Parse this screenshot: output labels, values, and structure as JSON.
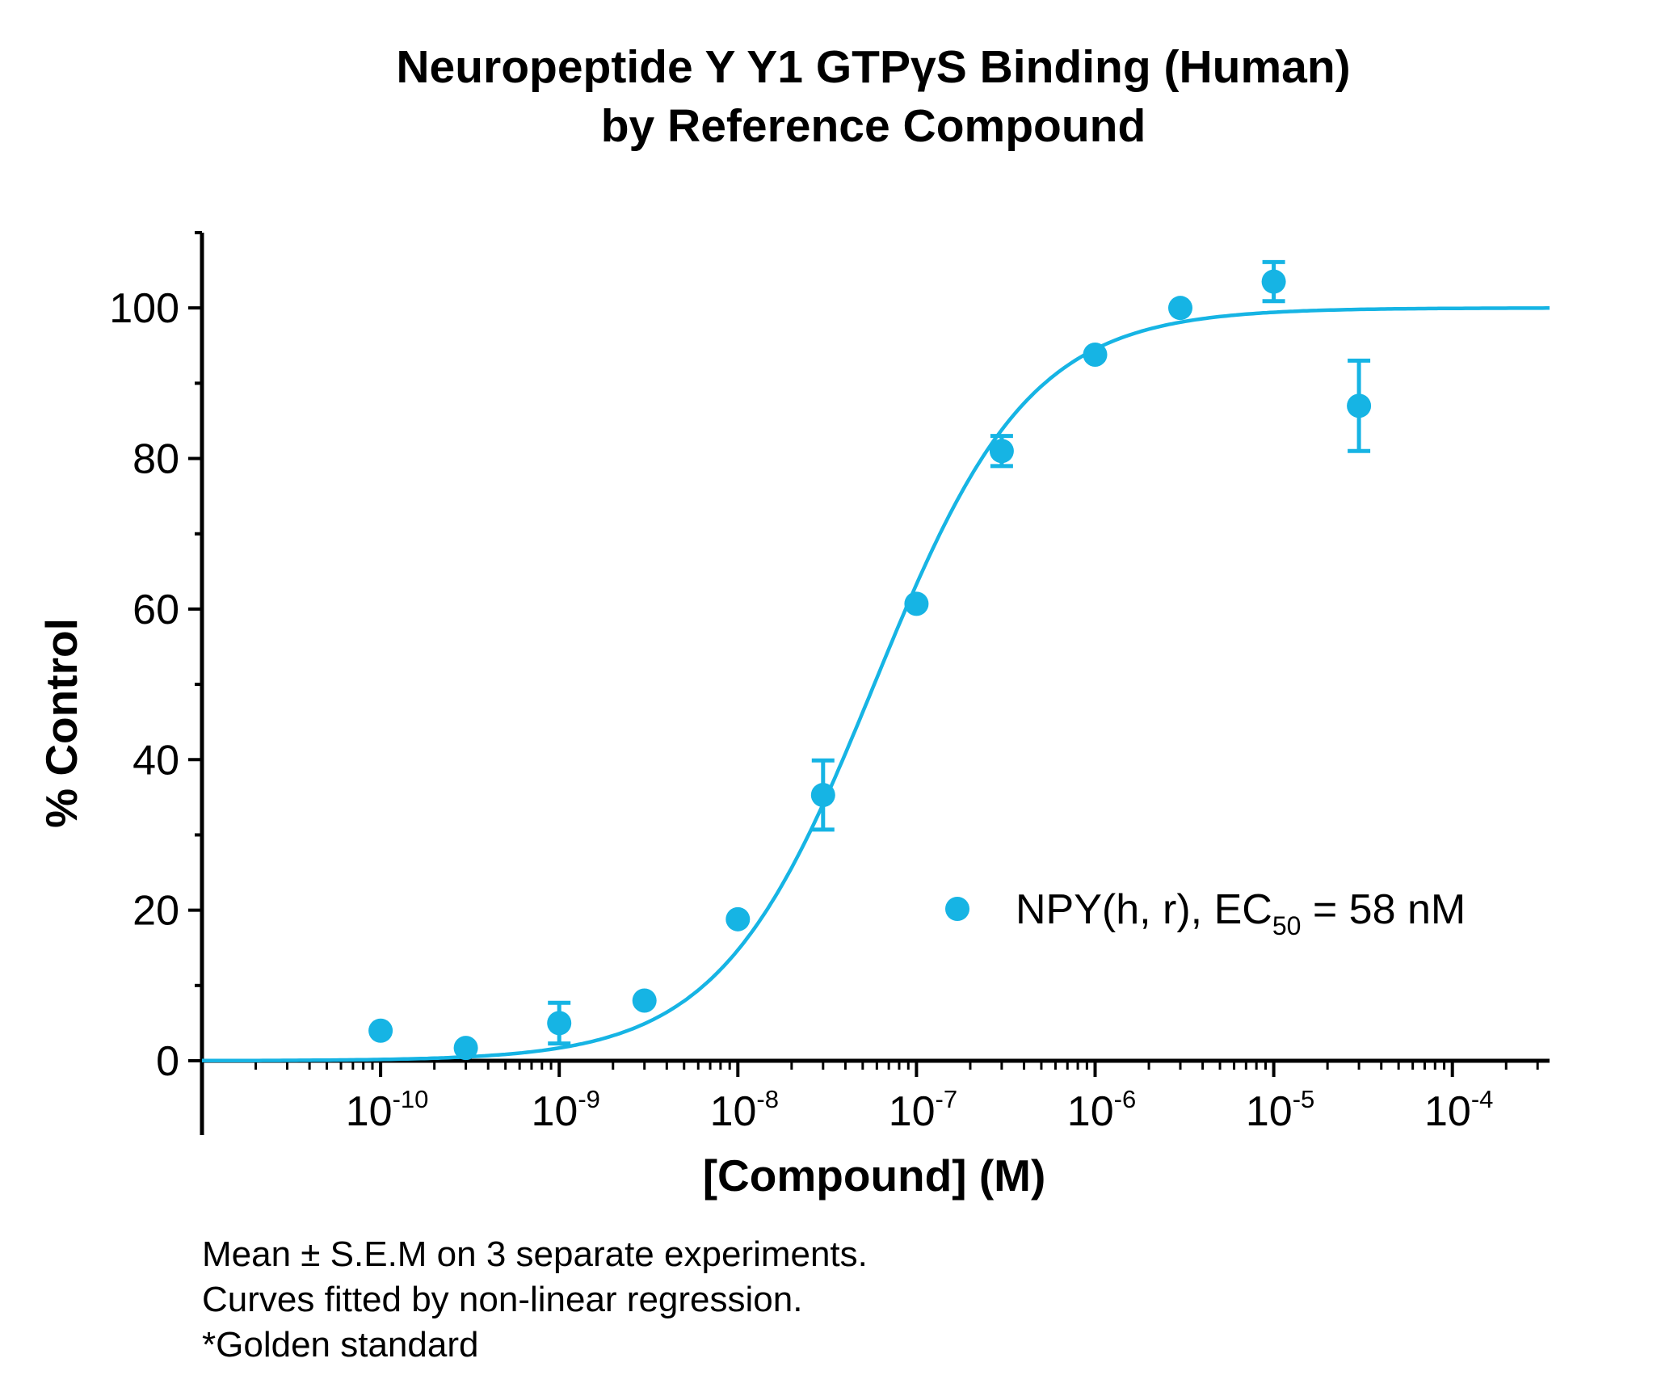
{
  "chart_data": {
    "type": "scatter",
    "title_lines": [
      "Neuropeptide Y Y1 GTPγS Binding (Human)",
      "by Reference Compound"
    ],
    "xlabel": "[Compound] (M)",
    "ylabel": "% Control",
    "x_scale": "log",
    "x_range": [
      1e-11,
      0.00035
    ],
    "x_ticks": [
      {
        "value": 1e-10,
        "base": "10",
        "exponent": "-10"
      },
      {
        "value": 1e-09,
        "base": "10",
        "exponent": "-9"
      },
      {
        "value": 1e-08,
        "base": "10",
        "exponent": "-8"
      },
      {
        "value": 1e-07,
        "base": "10",
        "exponent": "-7"
      },
      {
        "value": 1e-06,
        "base": "10",
        "exponent": "-6"
      },
      {
        "value": 1e-05,
        "base": "10",
        "exponent": "-5"
      },
      {
        "value": 0.0001,
        "base": "10",
        "exponent": "-4"
      }
    ],
    "y_range": [
      0,
      110
    ],
    "y_ticks": [
      "0",
      "20",
      "40",
      "60",
      "80",
      "100"
    ],
    "series": [
      {
        "legend_prefix": "NPY(h, r), EC",
        "legend_subscript": "50",
        "legend_suffix": " = 58 nM",
        "color": "#16b4e4",
        "points": [
          {
            "x": 1e-10,
            "y": 4.0
          },
          {
            "x": 3e-10,
            "y": 1.7
          },
          {
            "x": 1e-09,
            "y": 5.0,
            "err": 2.7
          },
          {
            "x": 3e-09,
            "y": 8.0
          },
          {
            "x": 1e-08,
            "y": 18.8
          },
          {
            "x": 3e-08,
            "y": 35.3,
            "err": 4.6
          },
          {
            "x": 1e-07,
            "y": 60.7
          },
          {
            "x": 3e-07,
            "y": 81.0,
            "err": 2.0
          },
          {
            "x": 1e-06,
            "y": 93.8
          },
          {
            "x": 3e-06,
            "y": 100.0
          },
          {
            "x": 1e-05,
            "y": 103.5,
            "err": 2.6
          },
          {
            "x": 3e-05,
            "y": 87.0,
            "err": 6.0
          }
        ],
        "fit": {
          "model": "sigmoidal dose-response",
          "bottom": 0,
          "top": 100,
          "ec50": 5.8e-08,
          "hill": 1.0
        }
      }
    ]
  },
  "footnotes": [
    "Mean ± S.E.M on 3 separate experiments.",
    "Curves fitted by non-linear regression.",
    "*Golden standard"
  ]
}
